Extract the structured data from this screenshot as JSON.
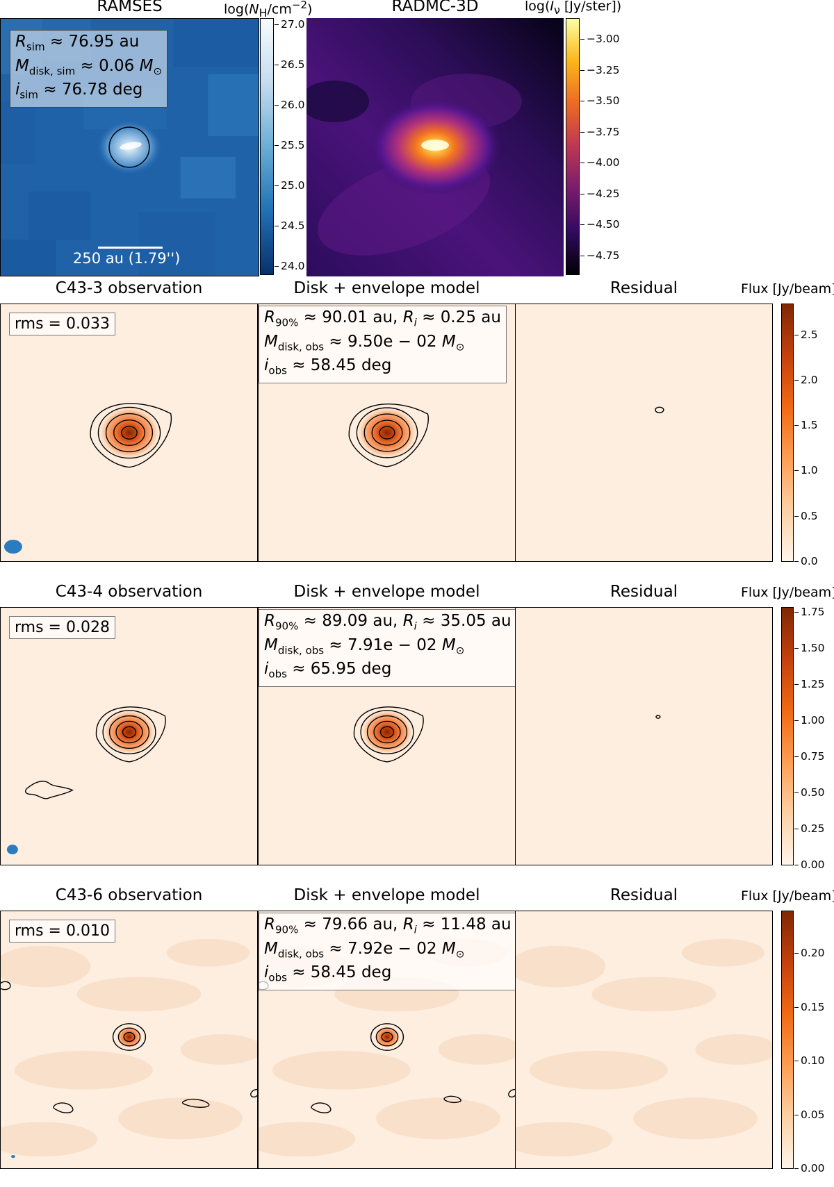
{
  "top_row": {
    "ramses": {
      "title": "RAMSES",
      "cbar_label_prefix": "log(",
      "cbar_label_var": "N",
      "cbar_label_sub": "H",
      "cbar_label_unit": "/cm",
      "cbar_label_sup": "−2",
      "cbar_label_close": ")",
      "ticks": [
        "27.0",
        "26.5",
        "26.0",
        "25.5",
        "25.0",
        "24.5",
        "24.0"
      ],
      "params": {
        "r_sim": "≈ 76.95 au",
        "m_disk_sim": "≈ 0.06",
        "i_sim": "≈ 76.78 deg"
      },
      "scalebar_label": "250 au (1.79'')"
    },
    "radmc": {
      "title": "RADMC-3D",
      "cbar_label_prefix": "log(",
      "cbar_label_var": "I",
      "cbar_label_sub": "ν",
      "cbar_label_rest": " [Jy/ster])",
      "ticks": [
        "−3.00",
        "−3.25",
        "−3.50",
        "−3.75",
        "−4.00",
        "−4.25",
        "−4.50",
        "−4.75"
      ]
    }
  },
  "rows": [
    {
      "obs_title": "C43-3 observation",
      "model_title": "Disk + envelope model",
      "residual_title": "Residual",
      "cbar_title": "Flux [Jy/beam]",
      "rms": "rms = 0.033",
      "r90": "≈ 90.01 au,",
      "ri": "≈ 0.25 au",
      "mdisk": "≈ 9.50e − 02",
      "iobs": "≈ 58.45 deg",
      "ticks": [
        "2.5",
        "2.0",
        "1.5",
        "1.0",
        "0.5",
        "0.0"
      ],
      "tick_values": [
        2.5,
        2.0,
        1.5,
        1.0,
        0.5,
        0.0
      ],
      "vmax": 2.85
    },
    {
      "obs_title": "C43-4 observation",
      "model_title": "Disk + envelope model",
      "residual_title": "Residual",
      "cbar_title": "Flux [Jy/beam]",
      "rms": "rms = 0.028",
      "r90": "≈ 89.09 au,",
      "ri": "≈ 35.05 au",
      "mdisk": "≈ 7.91e − 02",
      "iobs": "≈ 65.95 deg",
      "ticks": [
        "1.75",
        "1.50",
        "1.25",
        "1.00",
        "0.75",
        "0.50",
        "0.25",
        "0.00"
      ],
      "tick_values": [
        1.75,
        1.5,
        1.25,
        1.0,
        0.75,
        0.5,
        0.25,
        0.0
      ],
      "vmax": 1.79
    },
    {
      "obs_title": "C43-6 observation",
      "model_title": "Disk + envelope model",
      "residual_title": "Residual",
      "cbar_title": "Flux [Jy/beam]",
      "rms": "rms = 0.010",
      "r90": "≈ 79.66 au,",
      "ri": "≈ 11.48 au",
      "mdisk": "≈ 7.92e − 02",
      "iobs": "≈ 58.45 deg",
      "ticks": [
        "0.20",
        "0.15",
        "0.10",
        "0.05",
        "0.00"
      ],
      "tick_values": [
        0.2,
        0.15,
        0.1,
        0.05,
        0.0
      ],
      "vmax": 0.24
    }
  ],
  "colors": {
    "ramses_bg": "#1f62a8",
    "flux_bg": "#fdeedf",
    "beam": "#2a7bbf",
    "contour": "#000000"
  }
}
